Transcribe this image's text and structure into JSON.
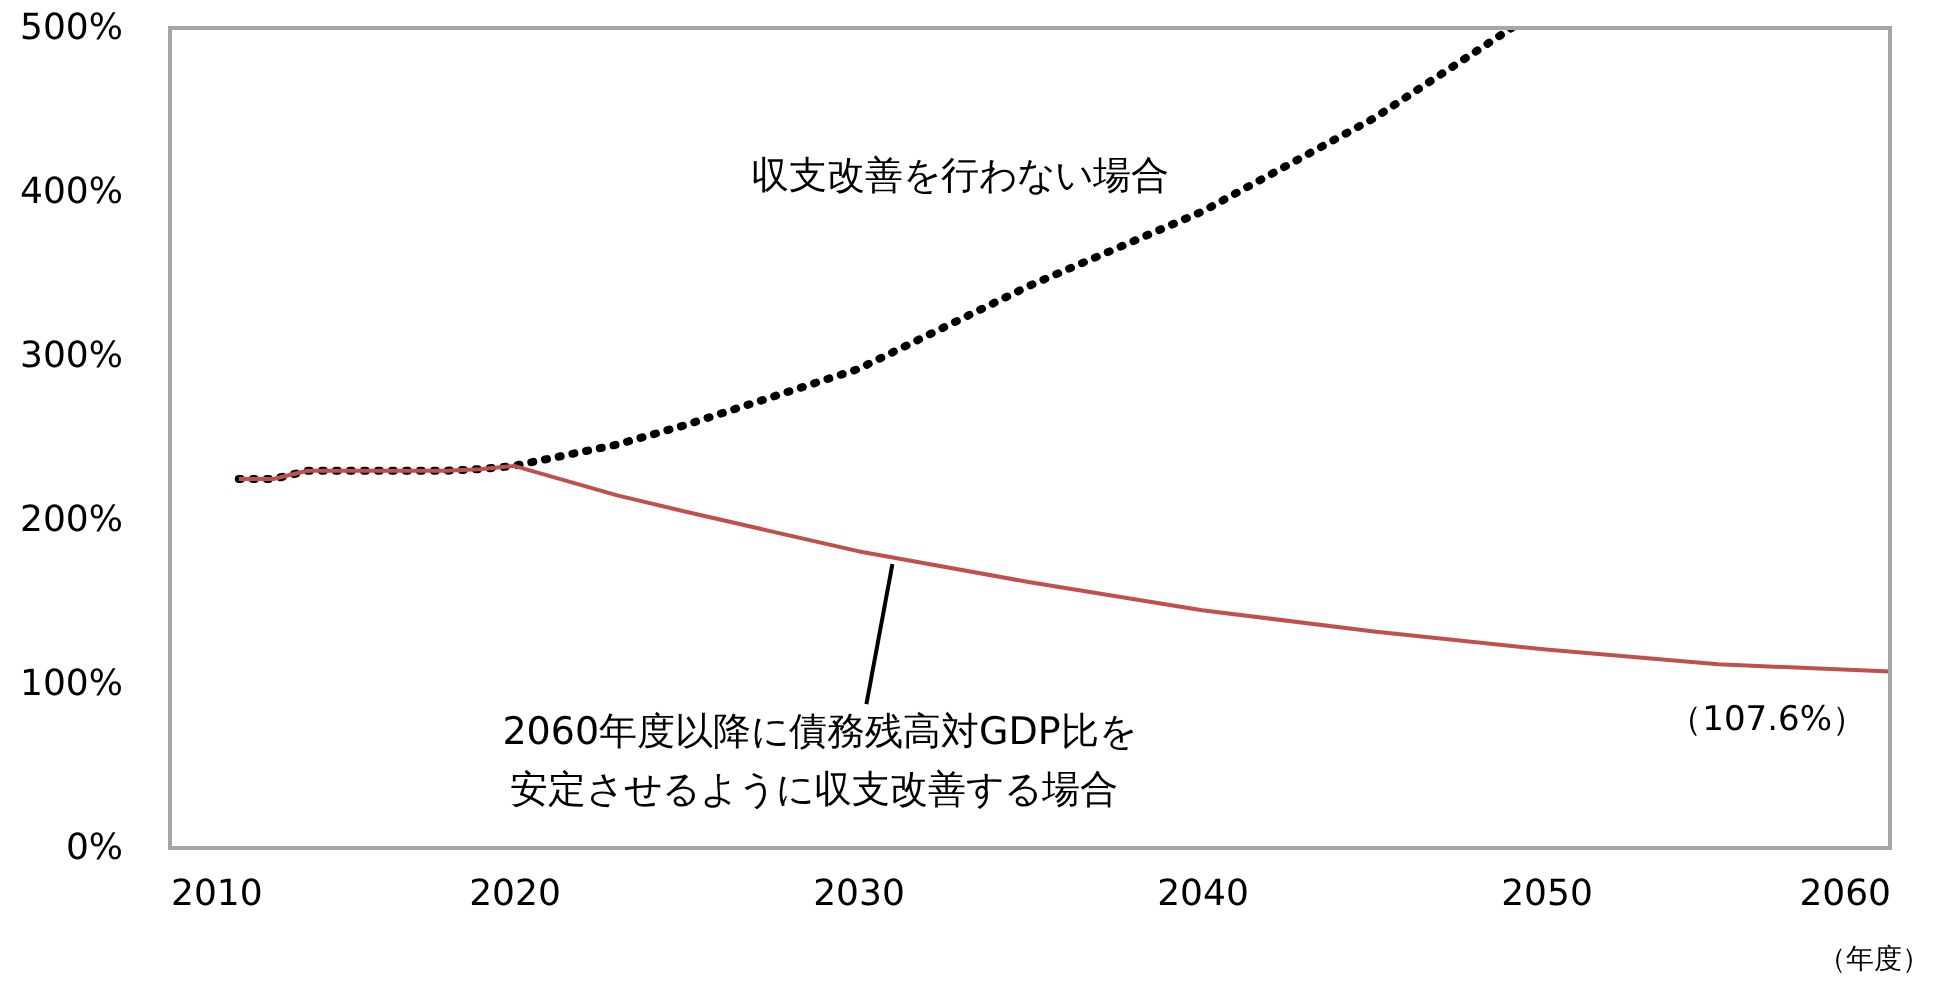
{
  "chart_data": {
    "type": "line",
    "xlabel": "（年度）",
    "xlim": [
      2010,
      2060
    ],
    "xticks": [
      2010,
      2020,
      2030,
      2040,
      2050,
      2060
    ],
    "ylim": [
      0,
      500
    ],
    "yticks": [
      {
        "value": 0,
        "label": "0%"
      },
      {
        "value": 100,
        "label": "100%"
      },
      {
        "value": 200,
        "label": "200%"
      },
      {
        "value": 300,
        "label": "300%"
      },
      {
        "value": 400,
        "label": "400%"
      },
      {
        "value": 500,
        "label": "500%"
      }
    ],
    "grid": false,
    "series": [
      {
        "color": "#000000",
        "line_style": "dotted",
        "x": [
          2012,
          2013,
          2014,
          2015,
          2016,
          2017,
          2018,
          2019,
          2020,
          2023,
          2025,
          2030,
          2035,
          2040,
          2045,
          2049
        ],
        "values": [
          225,
          225,
          230,
          230,
          230,
          230,
          230,
          231,
          233,
          246,
          258,
          292,
          343,
          388,
          445,
          500
        ]
      },
      {
        "color": "#c0504d",
        "line_style": "solid",
        "x": [
          2012,
          2013,
          2014,
          2015,
          2016,
          2017,
          2018,
          2019,
          2020,
          2023,
          2025,
          2030,
          2035,
          2040,
          2045,
          2050,
          2055,
          2060
        ],
        "values": [
          225,
          225,
          230,
          230,
          230,
          230,
          230,
          231,
          233,
          215,
          205,
          181,
          162,
          145,
          132,
          121,
          112,
          107.6
        ]
      }
    ],
    "annotations": [
      "収支改善を行わない場合",
      {
        "text": "2060年度以降に債務残高対GDP比を",
        "x": 2031,
        "y": 178
      },
      "安定させるように収支改善する場合",
      {
        "text": "（107.6%）",
        "x": 2060,
        "y": 107.6
      }
    ]
  }
}
